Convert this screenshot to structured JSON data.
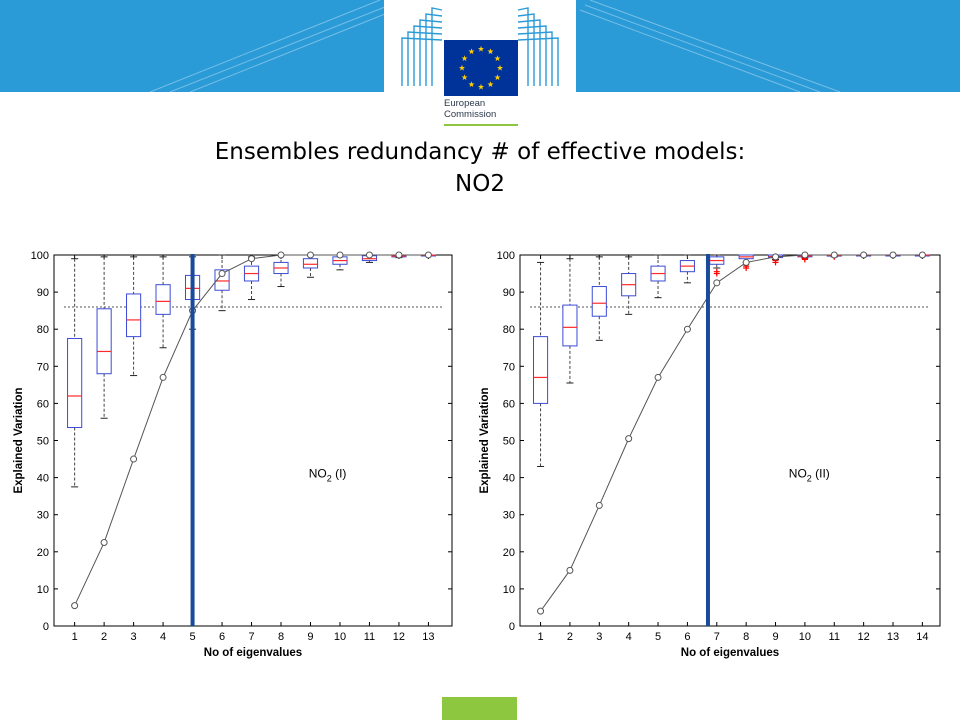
{
  "header": {
    "logo_line1": "European",
    "logo_line2": "Commission",
    "colors": {
      "band": "#2b9bd8",
      "eu_flag": "#003399",
      "eu_stars": "#ffcc00",
      "accent": "#8dc63f"
    }
  },
  "slide": {
    "title_line1": "Ensembles redundancy # of effective models:",
    "title_line2": "NO2"
  },
  "chart_data": [
    {
      "type": "box",
      "ylabel": "Explained Variation",
      "xlabel": "No of eigenvalues",
      "annotation": "NO2 (I)",
      "annotation_main": "NO",
      "annotation_sub": "2",
      "annotation_rest": " (I)",
      "ylim": [
        0,
        100
      ],
      "yticks": [
        0,
        10,
        20,
        30,
        40,
        50,
        60,
        70,
        80,
        90,
        100
      ],
      "categories": [
        1,
        2,
        3,
        4,
        5,
        6,
        7,
        8,
        9,
        10,
        11,
        12,
        13
      ],
      "xlim": [
        0.3,
        13.8
      ],
      "boxes": [
        {
          "x": 1,
          "lw": 37.5,
          "q1": 53.5,
          "med": 62,
          "q3": 77.5,
          "uw": 99
        },
        {
          "x": 2,
          "lw": 56,
          "q1": 68,
          "med": 74,
          "q3": 85.5,
          "uw": 99.5
        },
        {
          "x": 3,
          "lw": 67.5,
          "q1": 78,
          "med": 82.5,
          "q3": 89.5,
          "uw": 99.5
        },
        {
          "x": 4,
          "lw": 75,
          "q1": 84,
          "med": 87.5,
          "q3": 92,
          "uw": 99.5
        },
        {
          "x": 5,
          "lw": 80,
          "q1": 88,
          "med": 91,
          "q3": 94.5,
          "uw": 99.5
        },
        {
          "x": 6,
          "lw": 85,
          "q1": 90.5,
          "med": 93,
          "q3": 96,
          "uw": 100
        },
        {
          "x": 7,
          "lw": 88,
          "q1": 93,
          "med": 95,
          "q3": 97,
          "uw": 99.5
        },
        {
          "x": 8,
          "lw": 91.5,
          "q1": 95,
          "med": 96.5,
          "q3": 98,
          "uw": 100
        },
        {
          "x": 9,
          "lw": 94,
          "q1": 96.5,
          "med": 97.5,
          "q3": 99,
          "uw": 100
        },
        {
          "x": 10,
          "lw": 96,
          "q1": 97.5,
          "med": 98.5,
          "q3": 99.5,
          "uw": 100
        },
        {
          "x": 11,
          "lw": 98,
          "q1": 98.5,
          "med": 99,
          "q3": 99.8,
          "uw": 100
        },
        {
          "x": 12,
          "lw": 99.3,
          "q1": 99.5,
          "med": 99.7,
          "q3": 99.9,
          "uw": 100
        },
        {
          "x": 13,
          "lw": 99.8,
          "q1": 99.9,
          "med": 99.95,
          "q3": 100,
          "uw": 100
        }
      ],
      "curve": {
        "x": [
          1,
          2,
          3,
          4,
          5,
          6,
          7,
          8,
          9,
          10,
          11,
          12,
          13
        ],
        "y": [
          5.5,
          22.5,
          45,
          67,
          85,
          95,
          99,
          100,
          100,
          100,
          100,
          100,
          100
        ]
      },
      "threshold_y": 86,
      "vline_x": 5,
      "outliers": []
    },
    {
      "type": "box",
      "ylabel": "Explained Variation",
      "xlabel": "No of eigenvalues",
      "annotation": "NO2 (II)",
      "annotation_main": "NO",
      "annotation_sub": "2",
      "annotation_rest": " (II)",
      "ylim": [
        0,
        100
      ],
      "yticks": [
        0,
        10,
        20,
        30,
        40,
        50,
        60,
        70,
        80,
        90,
        100
      ],
      "categories": [
        1,
        2,
        3,
        4,
        5,
        6,
        7,
        8,
        9,
        10,
        11,
        12,
        13,
        14
      ],
      "xlim": [
        0.3,
        14.6
      ],
      "boxes": [
        {
          "x": 1,
          "lw": 43,
          "q1": 60,
          "med": 67,
          "q3": 78,
          "uw": 98
        },
        {
          "x": 2,
          "lw": 65.5,
          "q1": 75.5,
          "med": 80.5,
          "q3": 86.5,
          "uw": 99
        },
        {
          "x": 3,
          "lw": 77,
          "q1": 83.5,
          "med": 87,
          "q3": 91.5,
          "uw": 99.5
        },
        {
          "x": 4,
          "lw": 84,
          "q1": 89,
          "med": 92,
          "q3": 95,
          "uw": 99.5
        },
        {
          "x": 5,
          "lw": 88.5,
          "q1": 93,
          "med": 95,
          "q3": 97,
          "uw": 100
        },
        {
          "x": 6,
          "lw": 92.5,
          "q1": 95.5,
          "med": 97,
          "q3": 98.5,
          "uw": 100
        },
        {
          "x": 7,
          "lw": 96.5,
          "q1": 97.5,
          "med": 98.5,
          "q3": 99.5,
          "uw": 100
        },
        {
          "x": 8,
          "lw": 98,
          "q1": 99,
          "med": 99.5,
          "q3": 100,
          "uw": 100
        },
        {
          "x": 9,
          "lw": 98.8,
          "q1": 99.3,
          "med": 99.6,
          "q3": 100,
          "uw": 100
        },
        {
          "x": 10,
          "lw": 99.2,
          "q1": 99.5,
          "med": 99.7,
          "q3": 100,
          "uw": 100
        },
        {
          "x": 11,
          "lw": 99.5,
          "q1": 99.7,
          "med": 99.85,
          "q3": 100,
          "uw": 100
        },
        {
          "x": 12,
          "lw": 99.8,
          "q1": 99.9,
          "med": 99.95,
          "q3": 100,
          "uw": 100
        },
        {
          "x": 13,
          "lw": 99.9,
          "q1": 99.95,
          "med": 99.97,
          "q3": 100,
          "uw": 100
        },
        {
          "x": 14,
          "lw": 99.95,
          "q1": 99.97,
          "med": 99.99,
          "q3": 100,
          "uw": 100
        }
      ],
      "curve": {
        "x": [
          1,
          2,
          3,
          4,
          5,
          6,
          7,
          8,
          9,
          10,
          11,
          12,
          13,
          14
        ],
        "y": [
          4,
          15,
          32.5,
          50.5,
          67,
          80,
          92.5,
          98,
          99.5,
          100,
          100,
          100,
          100,
          100
        ]
      },
      "threshold_y": 86,
      "vline_x": 6.7,
      "outliers": [
        {
          "x": 7,
          "y": 95.5
        },
        {
          "x": 7,
          "y": 95
        },
        {
          "x": 8,
          "y": 97.5
        },
        {
          "x": 8,
          "y": 97
        },
        {
          "x": 8,
          "y": 96.5
        },
        {
          "x": 9,
          "y": 98.5
        },
        {
          "x": 9,
          "y": 98
        },
        {
          "x": 9,
          "y": 99
        },
        {
          "x": 10,
          "y": 99
        },
        {
          "x": 10,
          "y": 98.8
        },
        {
          "x": 10,
          "y": 99.3
        },
        {
          "x": 11,
          "y": 99.5
        }
      ]
    }
  ]
}
